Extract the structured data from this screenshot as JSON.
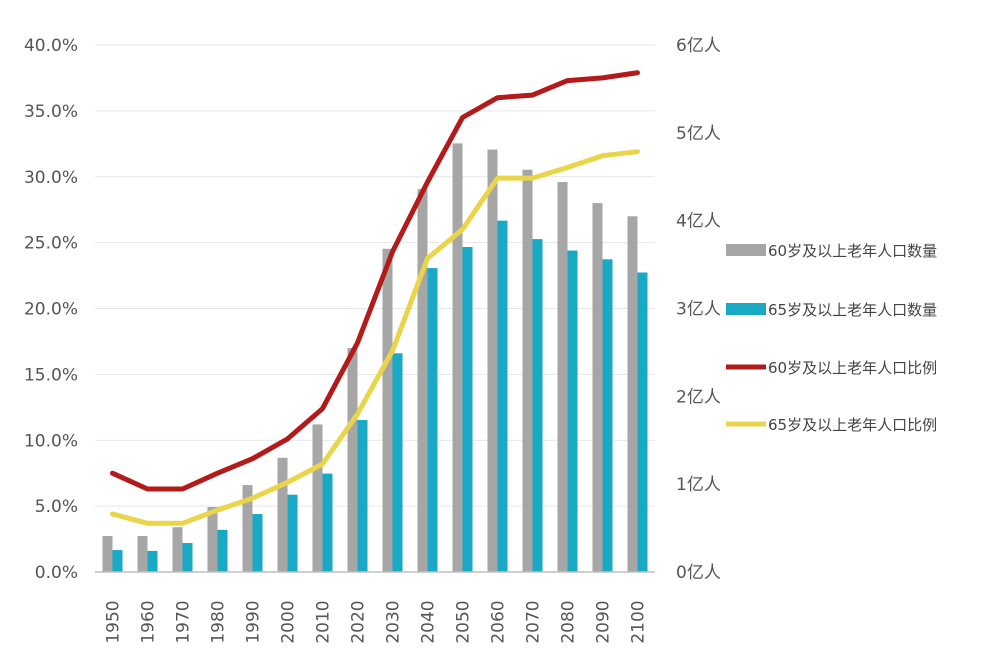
{
  "chart_data": {
    "type": "bar+line",
    "categories": [
      "1950",
      "1960",
      "1970",
      "1980",
      "1990",
      "2000",
      "2010",
      "2020",
      "2030",
      "2040",
      "2050",
      "2060",
      "2070",
      "2080",
      "2090",
      "2100"
    ],
    "series": [
      {
        "name": "60岁及以上老年人口数量",
        "kind": "bar",
        "axis": "right",
        "unit": "亿人",
        "values": [
          0.41,
          0.41,
          0.51,
          0.74,
          0.99,
          1.3,
          1.68,
          2.55,
          3.68,
          4.36,
          4.88,
          4.81,
          4.58,
          4.44,
          4.2,
          4.05
        ]
      },
      {
        "name": "65岁及以上老年人口数量",
        "kind": "bar",
        "axis": "right",
        "unit": "亿人",
        "values": [
          0.25,
          0.24,
          0.33,
          0.48,
          0.66,
          0.88,
          1.12,
          1.73,
          2.49,
          3.46,
          3.7,
          4.0,
          3.79,
          3.66,
          3.56,
          3.41
        ]
      },
      {
        "name": "60岁及以上老年人口比例",
        "kind": "line",
        "axis": "left",
        "unit": "%",
        "values": [
          7.5,
          6.3,
          6.3,
          7.5,
          8.6,
          10.1,
          12.4,
          17.4,
          24.3,
          29.6,
          34.5,
          36.0,
          36.2,
          37.3,
          37.5,
          37.9
        ]
      },
      {
        "name": "65岁及以上老年人口比例",
        "kind": "line",
        "axis": "left",
        "unit": "%",
        "values": [
          4.4,
          3.7,
          3.7,
          4.7,
          5.6,
          6.8,
          8.2,
          12.0,
          16.8,
          23.8,
          26.0,
          29.9,
          29.9,
          30.7,
          31.6,
          31.9
        ]
      }
    ],
    "left_axis": {
      "ticks": [
        "0.0%",
        "5.0%",
        "10.0%",
        "15.0%",
        "20.0%",
        "25.0%",
        "30.0%",
        "35.0%",
        "40.0%"
      ],
      "min": 0,
      "max": 40
    },
    "right_axis": {
      "ticks": [
        "0亿人",
        "1亿人",
        "2亿人",
        "3亿人",
        "4亿人",
        "5亿人",
        "6亿人"
      ],
      "min": 0,
      "max": 6
    },
    "grid": true,
    "legend_position": "right",
    "colors": {
      "bar60": "#a6a6a6",
      "bar65": "#1aa9c4",
      "line60": "#b31b1b",
      "line65": "#e9d44a",
      "grid": "#e6e6e6",
      "axis": "#bfbfbf"
    }
  }
}
